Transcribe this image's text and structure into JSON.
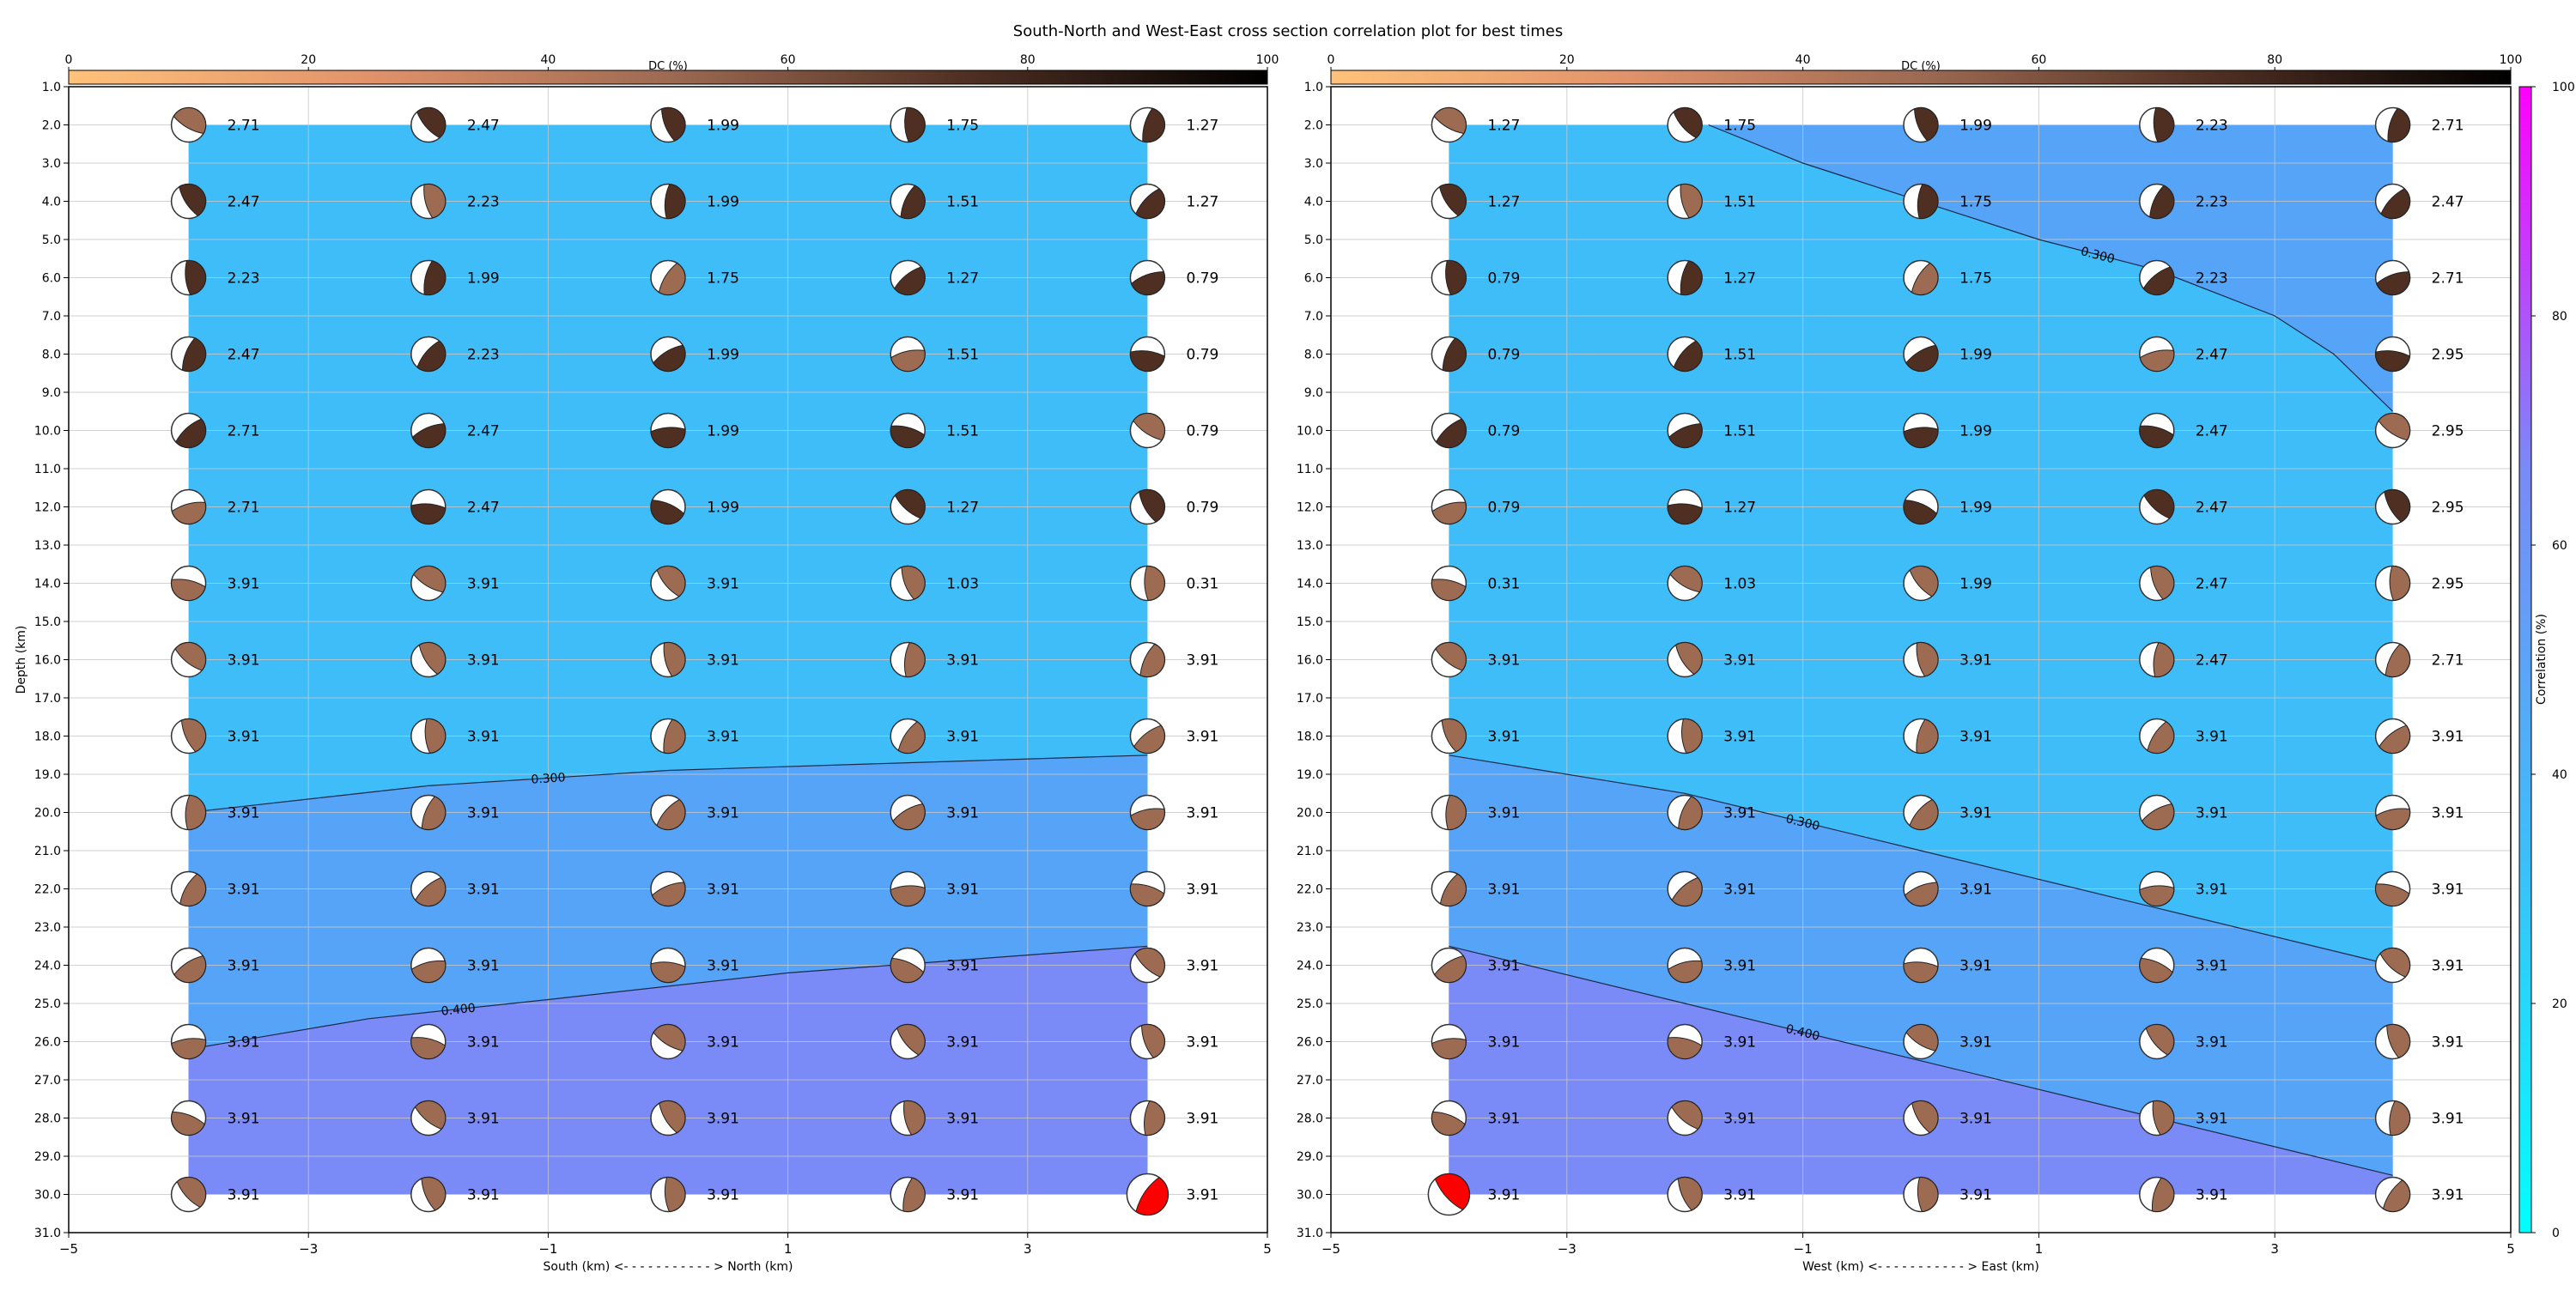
{
  "figure": {
    "title": "South-North and West-East cross section correlation plot for best times"
  },
  "colors": {
    "background": "#ffffff",
    "corr_0": "#3fbdf9",
    "corr_300": "#56a4f7",
    "corr_400": "#7a8af6",
    "highlight_beachball": "#ff0000",
    "grid": "#c8c8c8"
  },
  "dc_colorbar": {
    "label": "DC (%)",
    "ticks": [
      "0",
      "20",
      "40",
      "60",
      "80",
      "100"
    ],
    "colors": [
      "#ffc27a",
      "#e2926a",
      "#9d6a52",
      "#4f2f22",
      "#000000"
    ]
  },
  "corr_colorbar": {
    "label": "Correlation (%)",
    "ticks": [
      "0",
      "20",
      "40",
      "60",
      "80",
      "100"
    ],
    "colors": [
      "#00ffff",
      "#3fbdf9",
      "#7a8af6",
      "#ff00ff"
    ]
  },
  "depth_ticks": [
    "1.0",
    "2.0",
    "3.0",
    "4.0",
    "5.0",
    "6.0",
    "7.0",
    "8.0",
    "9.0",
    "10.0",
    "11.0",
    "12.0",
    "13.0",
    "14.0",
    "15.0",
    "16.0",
    "17.0",
    "18.0",
    "19.0",
    "20.0",
    "21.0",
    "22.0",
    "23.0",
    "24.0",
    "25.0",
    "26.0",
    "27.0",
    "28.0",
    "29.0",
    "30.0",
    "31.0"
  ],
  "chart_data": [
    {
      "type": "heatmap",
      "title": "",
      "xlabel": "South (km) <- - - - - - - - - - - > North (km)",
      "ylabel": "Depth (km)",
      "xlim": [
        -5,
        5
      ],
      "ylim": [
        31,
        1
      ],
      "x_ticks": [
        "−5",
        "−3",
        "−1",
        "1",
        "3",
        "5"
      ],
      "x_positions": [
        -4,
        -2,
        0,
        2,
        4
      ],
      "depths": [
        2,
        4,
        6,
        8,
        10,
        12,
        14,
        16,
        18,
        20,
        22,
        24,
        26,
        28,
        30
      ],
      "time_labels": [
        [
          "2.71",
          "2.47",
          "1.99",
          "1.75",
          "1.27"
        ],
        [
          "2.47",
          "2.23",
          "1.99",
          "1.51",
          "1.27"
        ],
        [
          "2.23",
          "1.99",
          "1.75",
          "1.27",
          "0.79"
        ],
        [
          "2.47",
          "2.23",
          "1.99",
          "1.51",
          "0.79"
        ],
        [
          "2.71",
          "2.47",
          "1.99",
          "1.51",
          "0.79"
        ],
        [
          "2.71",
          "2.47",
          "1.99",
          "1.27",
          "0.79"
        ],
        [
          "3.91",
          "3.91",
          "3.91",
          "1.03",
          "0.31"
        ],
        [
          "3.91",
          "3.91",
          "3.91",
          "3.91",
          "3.91"
        ],
        [
          "3.91",
          "3.91",
          "3.91",
          "3.91",
          "3.91"
        ],
        [
          "3.91",
          "3.91",
          "3.91",
          "3.91",
          "3.91"
        ],
        [
          "3.91",
          "3.91",
          "3.91",
          "3.91",
          "3.91"
        ],
        [
          "3.91",
          "3.91",
          "3.91",
          "3.91",
          "3.91"
        ],
        [
          "3.91",
          "3.91",
          "3.91",
          "3.91",
          "3.91"
        ],
        [
          "3.91",
          "3.91",
          "3.91",
          "3.91",
          "3.91"
        ],
        [
          "3.91",
          "3.91",
          "3.91",
          "3.91",
          "3.91"
        ]
      ],
      "contours": [
        {
          "label": "0.300",
          "points": [
            [
              -4,
              20
            ],
            [
              -2,
              19.3
            ],
            [
              0,
              18.9
            ],
            [
              2,
              18.7
            ],
            [
              4,
              18.5
            ]
          ]
        },
        {
          "label": "0.400",
          "points": [
            [
              -4,
              26.2
            ],
            [
              -2.5,
              25.4
            ],
            [
              -1,
              24.9
            ],
            [
              1,
              24.2
            ],
            [
              4,
              23.5
            ]
          ]
        }
      ],
      "highlight": {
        "x": 4,
        "depth": 30
      }
    },
    {
      "type": "heatmap",
      "title": "",
      "xlabel": "West (km) <- - - - - - - - - - - > East (km)",
      "ylabel": "",
      "xlim": [
        -5,
        5
      ],
      "ylim": [
        31,
        1
      ],
      "x_ticks": [
        "−5",
        "−3",
        "−1",
        "1",
        "3",
        "5"
      ],
      "x_positions": [
        -4,
        -2,
        0,
        2,
        4
      ],
      "depths": [
        2,
        4,
        6,
        8,
        10,
        12,
        14,
        16,
        18,
        20,
        22,
        24,
        26,
        28,
        30
      ],
      "time_labels": [
        [
          "1.27",
          "1.75",
          "1.99",
          "2.23",
          "2.71"
        ],
        [
          "1.27",
          "1.51",
          "1.75",
          "2.23",
          "2.47"
        ],
        [
          "0.79",
          "1.27",
          "1.75",
          "2.23",
          "2.71"
        ],
        [
          "0.79",
          "1.51",
          "1.99",
          "2.47",
          "2.95"
        ],
        [
          "0.79",
          "1.51",
          "1.99",
          "2.47",
          "2.95"
        ],
        [
          "0.79",
          "1.27",
          "1.99",
          "2.47",
          "2.95"
        ],
        [
          "0.31",
          "1.03",
          "1.99",
          "2.47",
          "2.95"
        ],
        [
          "3.91",
          "3.91",
          "3.91",
          "2.47",
          "2.71"
        ],
        [
          "3.91",
          "3.91",
          "3.91",
          "3.91",
          "3.91"
        ],
        [
          "3.91",
          "3.91",
          "3.91",
          "3.91",
          "3.91"
        ],
        [
          "3.91",
          "3.91",
          "3.91",
          "3.91",
          "3.91"
        ],
        [
          "3.91",
          "3.91",
          "3.91",
          "3.91",
          "3.91"
        ],
        [
          "3.91",
          "3.91",
          "3.91",
          "3.91",
          "3.91"
        ],
        [
          "3.91",
          "3.91",
          "3.91",
          "3.91",
          "3.91"
        ],
        [
          "3.91",
          "3.91",
          "3.91",
          "3.91",
          "3.91"
        ]
      ],
      "contours": [
        {
          "label": "0.300",
          "points": [
            [
              -1.8,
              2
            ],
            [
              -1,
              3
            ],
            [
              1,
              5
            ],
            [
              2,
              5.8
            ],
            [
              3,
              7
            ],
            [
              3.5,
              8
            ],
            [
              4,
              9.5
            ]
          ]
        },
        {
          "label": "0.300",
          "points": [
            [
              -4,
              18.5
            ],
            [
              -2,
              19.5
            ],
            [
              0,
              21
            ],
            [
              2,
              22.5
            ],
            [
              4,
              24
            ]
          ]
        },
        {
          "label": "0.400",
          "points": [
            [
              -4,
              23.5
            ],
            [
              -2,
              25
            ],
            [
              0,
              26.5
            ],
            [
              2,
              28
            ],
            [
              4,
              29.5
            ]
          ]
        }
      ],
      "highlight": {
        "x": -4,
        "depth": 30
      }
    }
  ]
}
